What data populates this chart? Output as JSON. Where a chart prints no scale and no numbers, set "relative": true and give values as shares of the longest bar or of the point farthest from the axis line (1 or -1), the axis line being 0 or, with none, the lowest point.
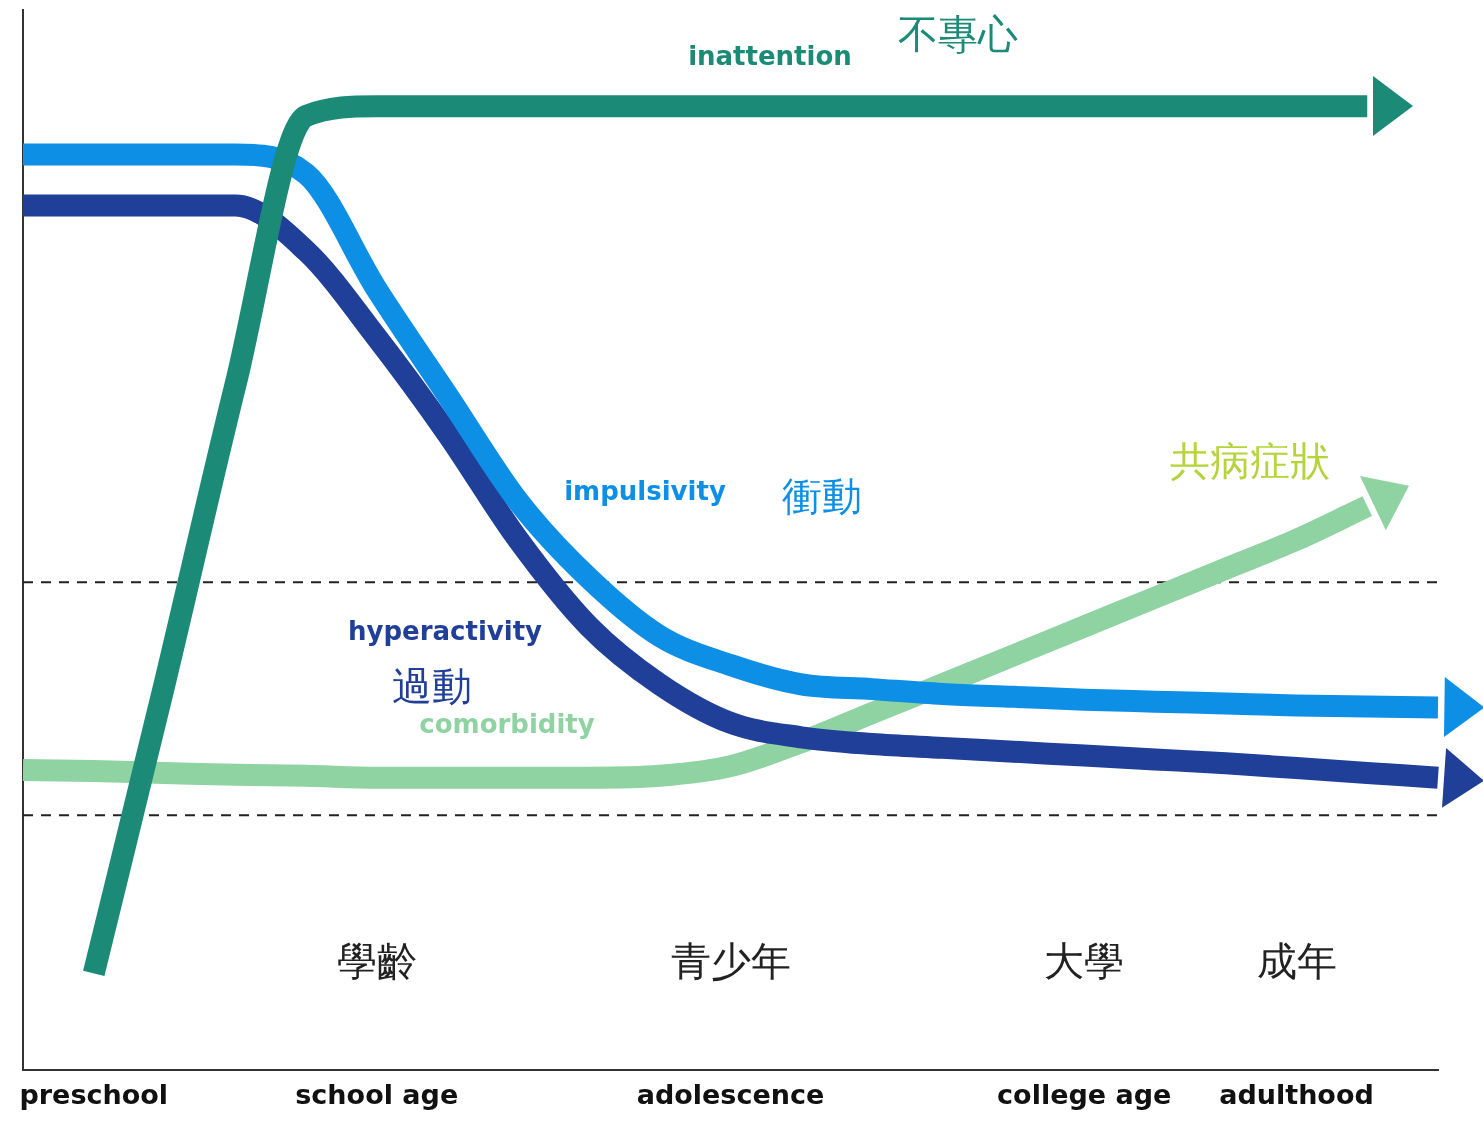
{
  "chart_data": {
    "type": "line",
    "relative": true,
    "categories": [
      null,
      "preschool",
      null,
      null,
      null,
      "school age",
      null,
      null,
      null,
      null,
      "adolescence",
      null,
      null,
      null,
      null,
      "college age",
      null,
      null,
      "adulthood",
      null,
      null
    ],
    "series": [
      {
        "name": "inattention",
        "color": "#1b8a76",
        "values": [
          null,
          0.1,
          0.4,
          0.71,
          0.99,
          1.0,
          1.0,
          1.0,
          1.0,
          1.0,
          1.0,
          1.0,
          1.0,
          1.0,
          1.0,
          1.0,
          1.0,
          1.0,
          1.0,
          1.0,
          null
        ]
      },
      {
        "name": "impulsivity",
        "color": "#0e8fe6",
        "values": [
          0.95,
          0.95,
          0.95,
          0.95,
          0.93,
          0.81,
          0.7,
          0.59,
          0.51,
          0.45,
          0.42,
          0.4,
          0.395,
          0.39,
          0.387,
          0.384,
          0.382,
          0.38,
          0.378,
          0.377,
          0.376
        ]
      },
      {
        "name": "hyperactivity",
        "color": "#1f3f98",
        "values": [
          0.897,
          0.897,
          0.897,
          0.897,
          0.85,
          0.76,
          0.66,
          0.55,
          0.46,
          0.4,
          0.36,
          0.345,
          0.338,
          0.334,
          0.33,
          0.326,
          0.322,
          0.318,
          0.313,
          0.308,
          0.303
        ]
      },
      {
        "name": "comorbidity",
        "color": "#8fd3a3",
        "values": [
          0.311,
          0.31,
          0.308,
          0.306,
          0.305,
          0.303,
          0.303,
          0.303,
          0.303,
          0.305,
          0.315,
          0.34,
          0.37,
          0.4,
          0.43,
          0.46,
          0.49,
          0.52,
          0.55,
          0.585,
          null
        ]
      }
    ],
    "ref_lines": [
      {
        "axis": "y",
        "value": 0.506,
        "color": "#222222",
        "line_style": "dashed"
      },
      {
        "axis": "y",
        "value": 0.264,
        "color": "#222222",
        "line_style": "dashed"
      }
    ],
    "annotations": [
      "不專心",
      "衝動",
      "過動",
      "共病症狀",
      "學齡",
      "青少年",
      "大學",
      "成年"
    ],
    "grid": false,
    "legend": false,
    "marker": "none",
    "line_style": "solid",
    "tick_labels": "x"
  }
}
